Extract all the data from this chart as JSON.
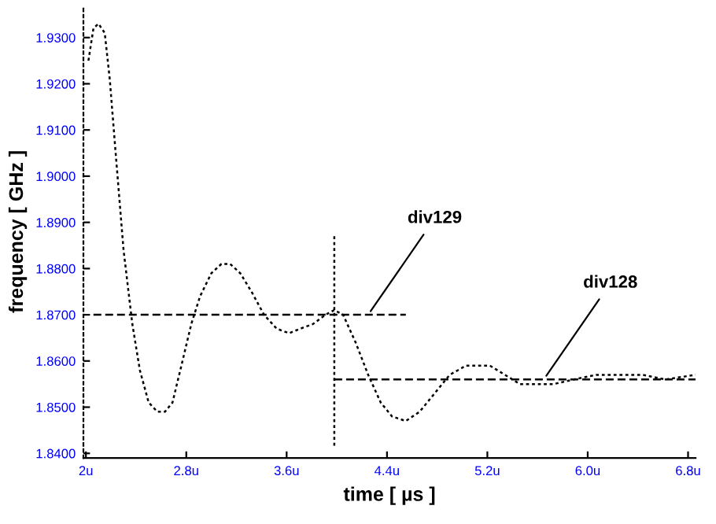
{
  "chart_data": {
    "type": "line",
    "xlabel": "time [ µs ]",
    "ylabel": "frequency [ GHz ]",
    "xlim": [
      1.98,
      6.86
    ],
    "ylim": [
      1.839,
      1.937
    ],
    "xticks": [
      {
        "value": 2.0,
        "label": "2u"
      },
      {
        "value": 2.8,
        "label": "2.8u"
      },
      {
        "value": 3.6,
        "label": "3.6u"
      },
      {
        "value": 4.4,
        "label": "4.4u"
      },
      {
        "value": 5.2,
        "label": "5.2u"
      },
      {
        "value": 6.0,
        "label": "6.0u"
      },
      {
        "value": 6.8,
        "label": "6.8u"
      }
    ],
    "yticks": [
      {
        "value": 1.84,
        "label": "1.8400"
      },
      {
        "value": 1.85,
        "label": "1.8500"
      },
      {
        "value": 1.86,
        "label": "1.8600"
      },
      {
        "value": 1.87,
        "label": "1.8700"
      },
      {
        "value": 1.88,
        "label": "1.8800"
      },
      {
        "value": 1.89,
        "label": "1.8900"
      },
      {
        "value": 1.9,
        "label": "1.9000"
      },
      {
        "value": 1.91,
        "label": "1.9100"
      },
      {
        "value": 1.92,
        "label": "1.9200"
      },
      {
        "value": 1.93,
        "label": "1.9300"
      }
    ],
    "grid": false,
    "legend": false,
    "marker": "none",
    "series": [
      {
        "color": "#000000",
        "line_style": "dotted",
        "x": [
          2.02,
          2.06,
          2.1,
          2.15,
          2.19,
          2.24,
          2.3,
          2.37,
          2.43,
          2.5,
          2.57,
          2.63,
          2.69,
          2.77,
          2.84,
          2.91,
          3.0,
          3.08,
          3.15,
          3.23,
          3.32,
          3.42,
          3.52,
          3.62,
          3.71,
          3.81,
          3.91,
          3.98,
          4.05,
          4.15,
          4.25,
          4.35,
          4.44,
          4.55,
          4.66,
          4.78,
          4.9,
          5.03,
          5.12,
          5.22,
          5.34,
          5.46,
          5.58,
          5.73,
          5.89,
          6.07,
          6.25,
          6.44,
          6.62,
          6.86
        ],
        "values": [
          1.925,
          1.932,
          1.933,
          1.931,
          1.921,
          1.904,
          1.884,
          1.868,
          1.858,
          1.851,
          1.849,
          1.849,
          1.851,
          1.86,
          1.868,
          1.874,
          1.879,
          1.881,
          1.881,
          1.879,
          1.875,
          1.87,
          1.867,
          1.866,
          1.867,
          1.868,
          1.87,
          1.871,
          1.87,
          1.864,
          1.857,
          1.851,
          1.848,
          1.847,
          1.849,
          1.853,
          1.857,
          1.859,
          1.859,
          1.859,
          1.857,
          1.855,
          1.855,
          1.855,
          1.856,
          1.857,
          1.857,
          1.857,
          1.856,
          1.857
        ]
      },
      {
        "color": "#000000",
        "line_style": "dashed",
        "x": [
          2.06,
          4.55
        ],
        "values": [
          1.87,
          1.87
        ]
      },
      {
        "color": "#000000",
        "line_style": "dashed",
        "x": [
          3.98,
          6.86
        ],
        "values": [
          1.856,
          1.856
        ]
      },
      {
        "color": "#000000",
        "line_style": "dotted",
        "x": [
          3.98,
          3.98
        ],
        "values": [
          1.887,
          1.841
        ]
      }
    ],
    "annotations": [
      {
        "text": "div129",
        "x": 4.25,
        "y": 1.87
      },
      {
        "text": "div128",
        "x": 5.65,
        "y": 1.856
      }
    ]
  }
}
